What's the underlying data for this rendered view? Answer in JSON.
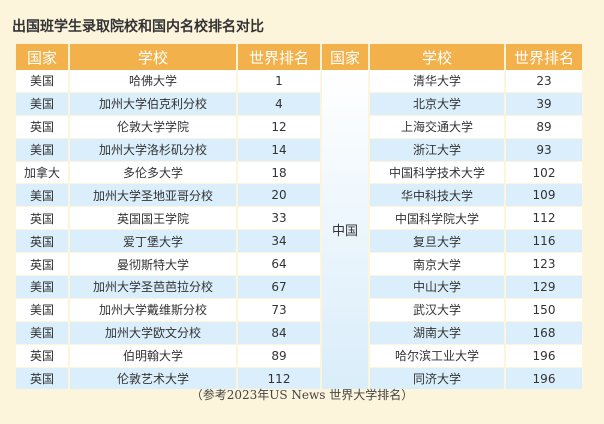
{
  "title": "出国班学生录取院校和国内名校排名对比",
  "headers": {
    "country_left": "国家",
    "school_left": "学校",
    "rank_left": "世界排名",
    "country_mid": "国家",
    "school_right": "学校",
    "rank_right": "世界排名"
  },
  "mid_country": "中国",
  "rows": [
    {
      "country": "美国",
      "school": "哈佛大学",
      "rank": "1",
      "cn_school": "清华大学",
      "cn_rank": "23"
    },
    {
      "country": "美国",
      "school": "加州大学伯克利分校",
      "rank": "4",
      "cn_school": "北京大学",
      "cn_rank": "39"
    },
    {
      "country": "英国",
      "school": "伦敦大学学院",
      "rank": "12",
      "cn_school": "上海交通大学",
      "cn_rank": "89"
    },
    {
      "country": "美国",
      "school": "加州大学洛杉矶分校",
      "rank": "14",
      "cn_school": "浙江大学",
      "cn_rank": "93"
    },
    {
      "country": "加拿大",
      "school": "多伦多大学",
      "rank": "18",
      "cn_school": "中国科学技术大学",
      "cn_rank": "102"
    },
    {
      "country": "美国",
      "school": "加州大学圣地亚哥分校",
      "rank": "20",
      "cn_school": "华中科技大学",
      "cn_rank": "109"
    },
    {
      "country": "英国",
      "school": "英国国王学院",
      "rank": "33",
      "cn_school": "中国科学院大学",
      "cn_rank": "112"
    },
    {
      "country": "英国",
      "school": "爱丁堡大学",
      "rank": "34",
      "cn_school": "复旦大学",
      "cn_rank": "116"
    },
    {
      "country": "英国",
      "school": "曼彻斯特大学",
      "rank": "64",
      "cn_school": "南京大学",
      "cn_rank": "123"
    },
    {
      "country": "美国",
      "school": "加州大学圣芭芭拉分校",
      "rank": "67",
      "cn_school": "中山大学",
      "cn_rank": "129"
    },
    {
      "country": "美国",
      "school": "加州大学戴维斯分校",
      "rank": "73",
      "cn_school": "武汉大学",
      "cn_rank": "150"
    },
    {
      "country": "美国",
      "school": "加州大学欧文分校",
      "rank": "84",
      "cn_school": "湖南大学",
      "cn_rank": "168"
    },
    {
      "country": "英国",
      "school": "伯明翰大学",
      "rank": "89",
      "cn_school": "哈尔滨工业大学",
      "cn_rank": "196"
    },
    {
      "country": "英国",
      "school": "伦敦艺术大学",
      "rank": "112",
      "cn_school": "同济大学",
      "cn_rank": "196"
    }
  ],
  "note": "（参考2023年US News 世界大学排名）"
}
